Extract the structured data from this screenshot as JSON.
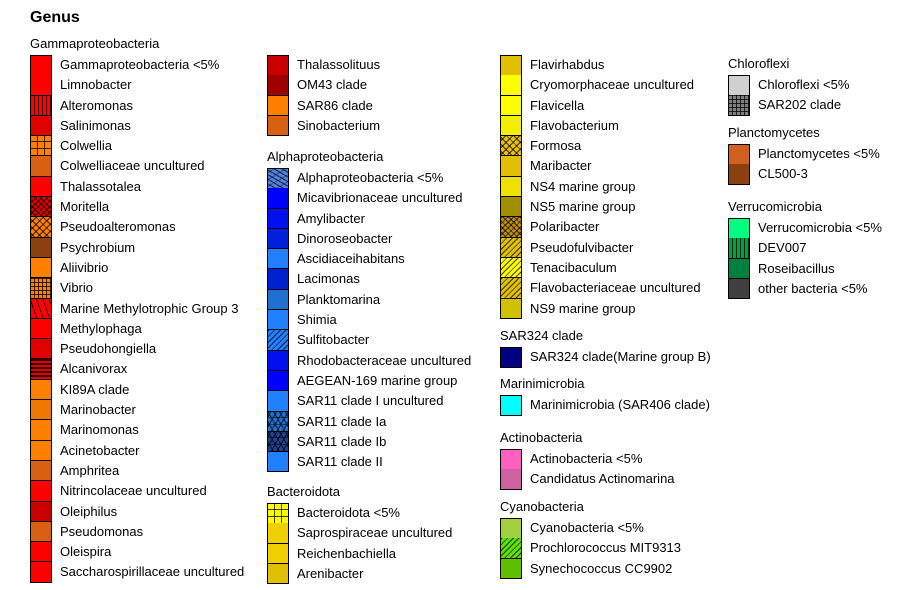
{
  "chart_data": {
    "type": "legend",
    "title": "Genus",
    "columns": [
      [
        {
          "group": "Gammaproteobacteria",
          "items": [
            {
              "label": "Gammaproteobacteria <5%",
              "color": "#ff0000",
              "pattern": "none"
            },
            {
              "label": "Limnobacter",
              "color": "#ff0000",
              "pattern": "none"
            },
            {
              "label": "Alteromonas",
              "color": "#ff0000",
              "pattern": "vlines"
            },
            {
              "label": "Salinimonas",
              "color": "#e00000",
              "pattern": "none"
            },
            {
              "label": "Colwellia",
              "color": "#ff8000",
              "pattern": "bricks"
            },
            {
              "label": "Colwelliaceae uncultured",
              "color": "#d86010",
              "pattern": "none"
            },
            {
              "label": "Thalassotalea",
              "color": "#ff0000",
              "pattern": "none"
            },
            {
              "label": "Moritella",
              "color": "#e00000",
              "pattern": "crosshatch"
            },
            {
              "label": "Pseudoalteromonas",
              "color": "#ff8000",
              "pattern": "zigzag"
            },
            {
              "label": "Psychrobium",
              "color": "#8b4010",
              "pattern": "none"
            },
            {
              "label": "Aliivibrio",
              "color": "#ff8000",
              "pattern": "none"
            },
            {
              "label": "Vibrio",
              "color": "#ff8000",
              "pattern": "grid"
            },
            {
              "label": "Marine Methylotrophic Group 3",
              "color": "#ff0000",
              "pattern": "dashes"
            },
            {
              "label": "Methylophaga",
              "color": "#ff0000",
              "pattern": "none"
            },
            {
              "label": "Pseudohongiella",
              "color": "#e00000",
              "pattern": "none"
            },
            {
              "label": "Alcanivorax",
              "color": "#e00000",
              "pattern": "hlines"
            },
            {
              "label": "KI89A clade",
              "color": "#ff8000",
              "pattern": "none"
            },
            {
              "label": "Marinobacter",
              "color": "#f07800",
              "pattern": "none"
            },
            {
              "label": "Marinomonas",
              "color": "#ff8000",
              "pattern": "none"
            },
            {
              "label": "Acinetobacter",
              "color": "#ff8000",
              "pattern": "none"
            },
            {
              "label": "Amphritea",
              "color": "#d86010",
              "pattern": "none"
            },
            {
              "label": "Nitrincolaceae uncultured",
              "color": "#ff0000",
              "pattern": "none"
            },
            {
              "label": "Oleiphilus",
              "color": "#c80000",
              "pattern": "none"
            },
            {
              "label": "Pseudomonas",
              "color": "#d86010",
              "pattern": "none"
            },
            {
              "label": "Oleispira",
              "color": "#ff0000",
              "pattern": "none"
            },
            {
              "label": "Saccharospirillaceae uncultured",
              "color": "#ff0000",
              "pattern": "none"
            }
          ]
        }
      ],
      [
        {
          "group": "",
          "items": [
            {
              "label": "Thalassolituus",
              "color": "#c80000",
              "pattern": "none"
            },
            {
              "label": "OM43 clade",
              "color": "#a00000",
              "pattern": "none"
            },
            {
              "label": "SAR86 clade",
              "color": "#ff8000",
              "pattern": "none"
            },
            {
              "label": "Sinobacterium",
              "color": "#d86010",
              "pattern": "none"
            }
          ]
        },
        {
          "group": "Alphaproteobacteria",
          "items": [
            {
              "label": "Alphaproteobacteria <5%",
              "color": "#5080e0",
              "pattern": "waves"
            },
            {
              "label": "Micavibrionaceae uncultured",
              "color": "#0000ff",
              "pattern": "none"
            },
            {
              "label": "Amylibacter",
              "color": "#0010f0",
              "pattern": "none"
            },
            {
              "label": "Dinoroseobacter",
              "color": "#0020e0",
              "pattern": "none"
            },
            {
              "label": "Ascidiaceihabitans",
              "color": "#2080ff",
              "pattern": "none"
            },
            {
              "label": "Lacimonas",
              "color": "#0020d0",
              "pattern": "none"
            },
            {
              "label": "Planktomarina",
              "color": "#2070d0",
              "pattern": "none"
            },
            {
              "label": "Shimia",
              "color": "#2080ff",
              "pattern": "none"
            },
            {
              "label": "Sulfitobacter",
              "color": "#2080ff",
              "pattern": "diag"
            },
            {
              "label": "Rhodobacteraceae uncultured",
              "color": "#0010f0",
              "pattern": "none"
            },
            {
              "label": "AEGEAN-169 marine group",
              "color": "#0000ff",
              "pattern": "none"
            },
            {
              "label": "SAR11 clade I uncultured",
              "color": "#2080ff",
              "pattern": "none"
            },
            {
              "label": "SAR11 clade Ia",
              "color": "#2070d0",
              "pattern": "hex"
            },
            {
              "label": "SAR11 clade Ib",
              "color": "#204090",
              "pattern": "hex"
            },
            {
              "label": "SAR11 clade II",
              "color": "#2080ff",
              "pattern": "none"
            }
          ]
        },
        {
          "group": "Bacteroidota",
          "items": [
            {
              "label": "Bacteroidota <5%",
              "color": "#ffff00",
              "pattern": "bricks"
            },
            {
              "label": "Saprospiraceae uncultured",
              "color": "#f0d000",
              "pattern": "none"
            },
            {
              "label": "Reichenbachiella",
              "color": "#f0d000",
              "pattern": "none"
            },
            {
              "label": "Arenibacter",
              "color": "#e0c000",
              "pattern": "none"
            }
          ]
        }
      ],
      [
        {
          "group": "",
          "items": [
            {
              "label": "Flavirhabdus",
              "color": "#e0c000",
              "pattern": "none"
            },
            {
              "label": "Cryomorphaceae uncultured",
              "color": "#ffff00",
              "pattern": "none"
            },
            {
              "label": "Flavicella",
              "color": "#ffff00",
              "pattern": "none"
            },
            {
              "label": "Flavobacterium",
              "color": "#f0f000",
              "pattern": "none"
            },
            {
              "label": "Formosa",
              "color": "#e8c000",
              "pattern": "zigzag"
            },
            {
              "label": "Maribacter",
              "color": "#e0c000",
              "pattern": "none"
            },
            {
              "label": "NS4 marine group",
              "color": "#f0e000",
              "pattern": "none"
            },
            {
              "label": "NS5 marine group",
              "color": "#a09000",
              "pattern": "none"
            },
            {
              "label": "Polaribacter",
              "color": "#c09000",
              "pattern": "crosshatch"
            },
            {
              "label": "Pseudofulvibacter",
              "color": "#e0c000",
              "pattern": "diag"
            },
            {
              "label": "Tenacibaculum",
              "color": "#ffff00",
              "pattern": "diag"
            },
            {
              "label": "Flavobacteriaceae uncultured",
              "color": "#e0c000",
              "pattern": "diag"
            },
            {
              "label": "NS9 marine group",
              "color": "#d0c000",
              "pattern": "none"
            }
          ]
        },
        {
          "group": "SAR324 clade",
          "items": [
            {
              "label": "SAR324 clade(Marine group B)",
              "color": "#000080",
              "pattern": "none"
            }
          ]
        },
        {
          "group": "Marinimicrobia",
          "items": [
            {
              "label": "Marinimicrobia (SAR406 clade)",
              "color": "#00ffff",
              "pattern": "none"
            }
          ]
        },
        {
          "group": "Actinobacteria",
          "items": [
            {
              "label": "Actinobacteria <5%",
              "color": "#ff60c0",
              "pattern": "none"
            },
            {
              "label": "Candidatus Actinomarina",
              "color": "#d060a0",
              "pattern": "none"
            }
          ]
        },
        {
          "group": "Cyanobacteria",
          "items": [
            {
              "label": "Cyanobacteria <5%",
              "color": "#a0d040",
              "pattern": "none"
            },
            {
              "label": "Prochlorococcus MIT9313",
              "color": "#60e000",
              "pattern": "diag"
            },
            {
              "label": "Synechococcus CC9902",
              "color": "#60c000",
              "pattern": "none"
            }
          ]
        }
      ],
      [
        {
          "group": "Chloroflexi",
          "items": [
            {
              "label": "Chloroflexi <5%",
              "color": "#d0d0d0",
              "pattern": "none"
            },
            {
              "label": "SAR202 clade",
              "color": "#808080",
              "pattern": "grid"
            }
          ]
        },
        {
          "group": "Planctomycetes",
          "items": [
            {
              "label": "Planctomycetes <5%",
              "color": "#d06020",
              "pattern": "none"
            },
            {
              "label": "CL500-3",
              "color": "#8b4010",
              "pattern": "none"
            }
          ]
        },
        {
          "group": "Verrucomicrobia",
          "items": [
            {
              "label": "Verrucomicrobia <5%",
              "color": "#00ff80",
              "pattern": "none"
            },
            {
              "label": "DEV007",
              "color": "#00a040",
              "pattern": "vlines"
            },
            {
              "label": "Roseibacillus",
              "color": "#008040",
              "pattern": "none"
            },
            {
              "label": "other bacteria <5%",
              "color": "#404040",
              "pattern": "none"
            }
          ]
        }
      ]
    ]
  }
}
